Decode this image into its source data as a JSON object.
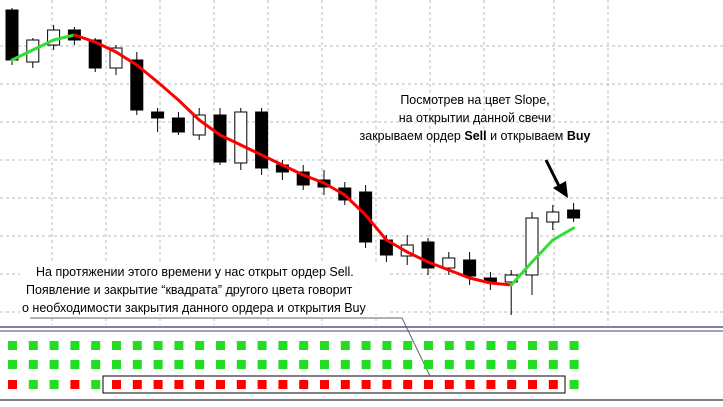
{
  "chart_data": {
    "type": "candlestick",
    "ylim": [
      0,
      330
    ],
    "candles": {
      "open": [
        320,
        268,
        285,
        300,
        290,
        262,
        270,
        218,
        212,
        195,
        215,
        167,
        218,
        165,
        158,
        150,
        142,
        138,
        90,
        74,
        88,
        62,
        70,
        52,
        48,
        55,
        108,
        120
      ],
      "high": [
        322,
        292,
        305,
        303,
        292,
        285,
        278,
        222,
        218,
        222,
        222,
        222,
        222,
        170,
        165,
        160,
        148,
        145,
        95,
        95,
        92,
        78,
        78,
        58,
        60,
        118,
        125,
        127
      ],
      "low": [
        265,
        262,
        280,
        285,
        258,
        255,
        215,
        198,
        195,
        190,
        165,
        160,
        155,
        150,
        140,
        135,
        125,
        82,
        60,
        65,
        55,
        55,
        45,
        40,
        15,
        35,
        100,
        108
      ],
      "close": [
        270,
        290,
        300,
        290,
        262,
        282,
        220,
        212,
        198,
        215,
        168,
        218,
        162,
        158,
        145,
        143,
        130,
        88,
        75,
        85,
        62,
        72,
        54,
        48,
        55,
        112,
        118,
        112
      ]
    },
    "slope": {
      "values": [
        270,
        280,
        290,
        295,
        288,
        278,
        265,
        248,
        230,
        210,
        195,
        185,
        175,
        165,
        155,
        147,
        135,
        115,
        90,
        78,
        68,
        60,
        52,
        47,
        45,
        68,
        90,
        102
      ],
      "colors": [
        "#33dd33",
        "#33dd33",
        "#33dd33",
        "#33dd33",
        "red",
        "red",
        "red",
        "red",
        "red",
        "red",
        "red",
        "red",
        "red",
        "red",
        "red",
        "red",
        "red",
        "red",
        "red",
        "red",
        "red",
        "red",
        "red",
        "red",
        "red",
        "#33dd33",
        "#33dd33",
        "#33dd33"
      ]
    },
    "indicator": [
      [
        "#22dd22",
        "#22dd22",
        "#22dd22",
        "#22dd22",
        "#22dd22",
        "#22dd22",
        "#22dd22",
        "#22dd22",
        "#22dd22",
        "#22dd22",
        "#22dd22",
        "#22dd22",
        "#22dd22",
        "#22dd22",
        "#22dd22",
        "#22dd22",
        "#22dd22",
        "#22dd22",
        "#22dd22",
        "#22dd22",
        "#22dd22",
        "#22dd22",
        "#22dd22",
        "#22dd22",
        "#22dd22",
        "#22dd22",
        "#22dd22",
        "#22dd22"
      ],
      [
        "#22dd22",
        "#22dd22",
        "#22dd22",
        "#22dd22",
        "#22dd22",
        "#22dd22",
        "#22dd22",
        "#22dd22",
        "#22dd22",
        "#22dd22",
        "#22dd22",
        "#22dd22",
        "#22dd22",
        "#22dd22",
        "#22dd22",
        "#22dd22",
        "#22dd22",
        "#22dd22",
        "#22dd22",
        "#22dd22",
        "#22dd22",
        "#22dd22",
        "#22dd22",
        "#22dd22",
        "#22dd22",
        "#22dd22",
        "#22dd22",
        "#22dd22"
      ],
      [
        "red",
        "#22dd22",
        "#22dd22",
        "red",
        "#22dd22",
        "red",
        "red",
        "red",
        "red",
        "red",
        "red",
        "red",
        "red",
        "red",
        "red",
        "red",
        "red",
        "red",
        "red",
        "red",
        "red",
        "red",
        "red",
        "red",
        "red",
        "red",
        "red",
        "#22dd22"
      ]
    ],
    "annotations": {
      "top": [
        "Посмотрев на цвет Slope,",
        "на открытии данной свечи",
        [
          "закрываем ордер ",
          "Sell",
          " и открываем ",
          "Buy"
        ]
      ],
      "bottom": [
        "На протяжении этого времени у нас открыт ордер Sell.",
        "Появление и закрытие “квадрата” другого цвета говорит",
        "о необходимости закрытия данного ордера и открытия Buy"
      ]
    }
  }
}
